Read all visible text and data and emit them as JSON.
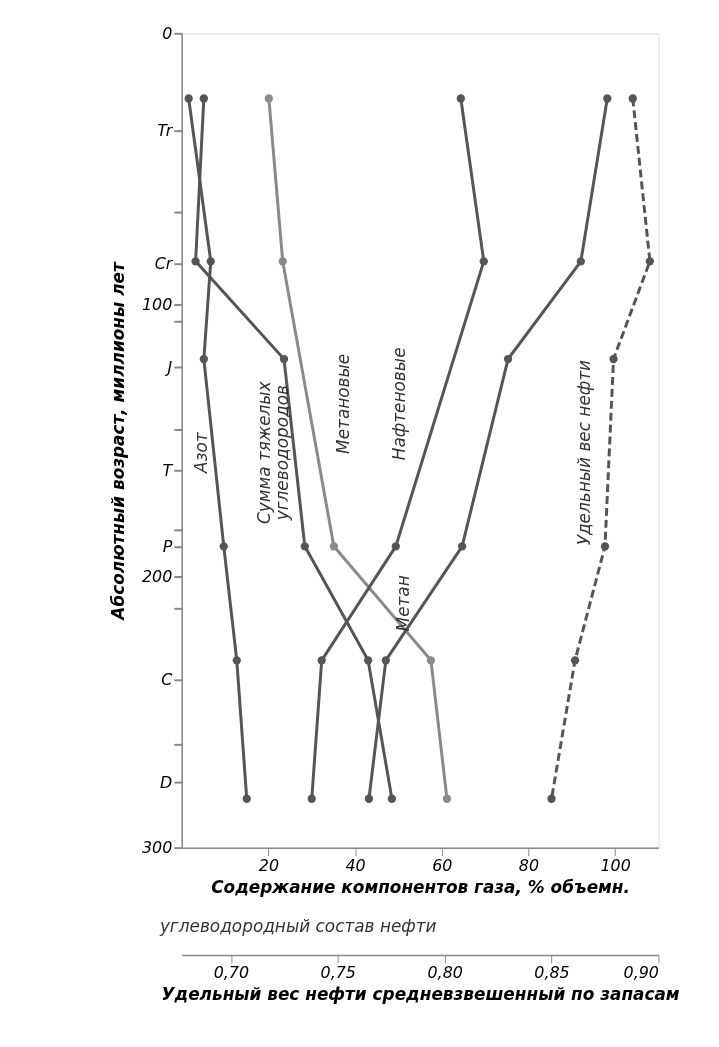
{
  "chart_data": {
    "type": "line",
    "xlabel": "Содержание компонентов газа, % объемн.",
    "x2label": "Удельный вес нефти средневзвешенный по запасам",
    "ylabel": "Абсолютный возраст, миллионы лет",
    "annotations": [
      "углеводородный состав нефти"
    ],
    "xlim": [
      0,
      110
    ],
    "xticks": [
      20,
      40,
      60,
      80,
      100
    ],
    "x2lim": [
      0.677,
      0.9
    ],
    "x2ticks": [
      {
        "value": 0.7,
        "label": "0,70"
      },
      {
        "value": 0.75,
        "label": "0,75"
      },
      {
        "value": 0.8,
        "label": "0,80"
      },
      {
        "value": 0.85,
        "label": "0,85"
      },
      {
        "value": 0.9,
        "label": "0,90"
      }
    ],
    "ylim": [
      300,
      0
    ],
    "yticks": [
      0,
      {
        "value": 36,
        "label": "Tr"
      },
      {
        "value": 66,
        "label": null
      },
      {
        "value": 85,
        "label": "Cr"
      },
      100,
      {
        "value": 106,
        "label": null
      },
      {
        "value": 123,
        "label": "J"
      },
      {
        "value": 146,
        "label": null
      },
      {
        "value": 161,
        "label": "T"
      },
      {
        "value": 183,
        "label": null
      },
      {
        "value": 189,
        "label": "P"
      },
      200,
      {
        "value": 212,
        "label": null
      },
      {
        "value": 238,
        "label": "C"
      },
      {
        "value": 262,
        "label": null
      },
      {
        "value": 276,
        "label": "D"
      },
      300
    ],
    "grid": false,
    "legend": false,
    "marker": "circle",
    "series": [
      {
        "name": "Азот",
        "color": "#555555",
        "line_style": "solid",
        "x": [
          1.6,
          6.7,
          5.1,
          9.7,
          12.7,
          15.0
        ],
        "values": [
          24,
          84,
          120,
          189,
          231,
          282
        ]
      },
      {
        "name": "Сумма тяжелых углеводородов",
        "color": "#555555",
        "line_style": "solid",
        "x": [
          5.1,
          3.2,
          23.6,
          28.4,
          43.0,
          48.5
        ],
        "values": [
          24,
          84,
          120,
          189,
          231,
          282
        ]
      },
      {
        "name": "Метановые",
        "color": "#8a8a8a",
        "line_style": "solid",
        "x": [
          20.1,
          23.3,
          35.1,
          57.5,
          61.2
        ],
        "values": [
          24,
          84,
          189,
          231,
          282
        ]
      },
      {
        "name": "Нафтеновые",
        "color": "#555555",
        "line_style": "solid",
        "x": [
          64.4,
          69.7,
          49.4,
          32.3,
          30.0
        ],
        "values": [
          24,
          84,
          189,
          231,
          282
        ]
      },
      {
        "name": "Метан",
        "color": "#555555",
        "line_style": "solid",
        "x": [
          98.2,
          92.1,
          75.3,
          64.7,
          47.1,
          43.2
        ],
        "values": [
          24,
          84,
          120,
          189,
          231,
          282
        ]
      },
      {
        "name": "Удельный вес нефти",
        "color": "#555555",
        "line_style": "dashed",
        "axis": "x2",
        "x": [
          0.888,
          0.896,
          0.879,
          0.875,
          0.861,
          0.85
        ],
        "values": [
          24,
          84,
          120,
          189,
          231,
          282
        ]
      }
    ]
  }
}
